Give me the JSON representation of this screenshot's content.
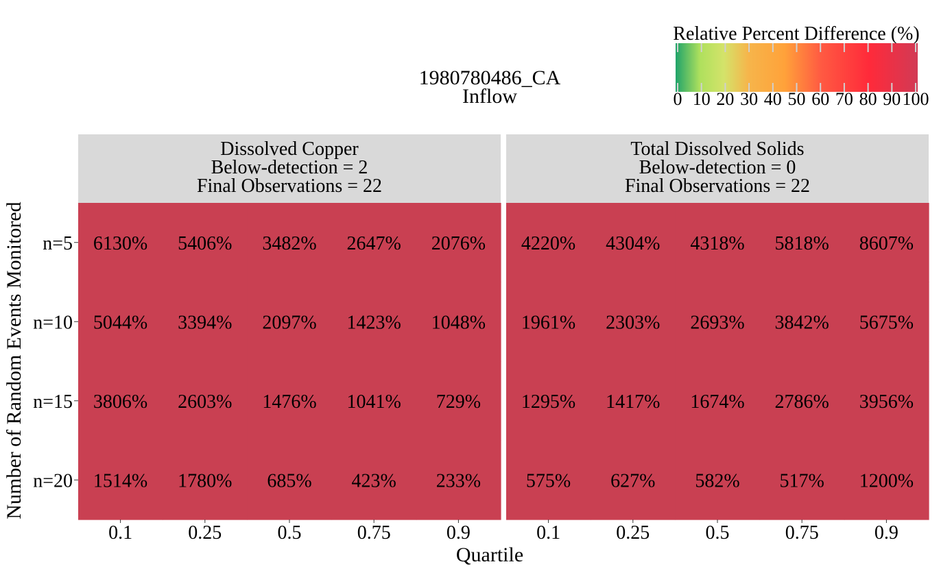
{
  "chart_data": {
    "type": "heatmap",
    "title": "1980780486_CA",
    "subtitle": "Inflow",
    "xlabel": "Quartile",
    "ylabel": "Number of Random Events Monitored",
    "x_categories": [
      "0.1",
      "0.25",
      "0.5",
      "0.75",
      "0.9"
    ],
    "y_categories": [
      "n=5",
      "n=10",
      "n=15",
      "n=20"
    ],
    "value_suffix": "%",
    "colorbar": {
      "title": "Relative Percent Difference (%)",
      "ticks": [
        0,
        10,
        20,
        30,
        40,
        50,
        60,
        70,
        80,
        90,
        100
      ],
      "range": [
        0,
        100
      ],
      "placement": "top-right",
      "stops": [
        {
          "value": 0,
          "color": "#1fa36a"
        },
        {
          "value": 10,
          "color": "#aee05d"
        },
        {
          "value": 20,
          "color": "#d4e36a"
        },
        {
          "value": 30,
          "color": "#f6b54b"
        },
        {
          "value": 45,
          "color": "#ffa23a"
        },
        {
          "value": 60,
          "color": "#ff5a42"
        },
        {
          "value": 80,
          "color": "#ff2a3a"
        },
        {
          "value": 100,
          "color": "#d23a55"
        }
      ]
    },
    "facet_header_color": "#d9d9d9",
    "cell_color": "#c94052",
    "panels": [
      {
        "header": [
          "Dissolved Copper",
          "Below-detection = 2",
          "Final Observations = 22"
        ],
        "values": [
          [
            6130,
            5406,
            3482,
            2647,
            2076
          ],
          [
            5044,
            3394,
            2097,
            1423,
            1048
          ],
          [
            3806,
            2603,
            1476,
            1041,
            729
          ],
          [
            1514,
            1780,
            685,
            423,
            233
          ]
        ]
      },
      {
        "header": [
          "Total Dissolved Solids",
          "Below-detection = 0",
          "Final Observations = 22"
        ],
        "values": [
          [
            4220,
            4304,
            4318,
            5818,
            8607
          ],
          [
            1961,
            2303,
            2693,
            3842,
            5675
          ],
          [
            1295,
            1417,
            1674,
            2786,
            3956
          ],
          [
            575,
            627,
            582,
            517,
            1200
          ]
        ]
      }
    ]
  }
}
